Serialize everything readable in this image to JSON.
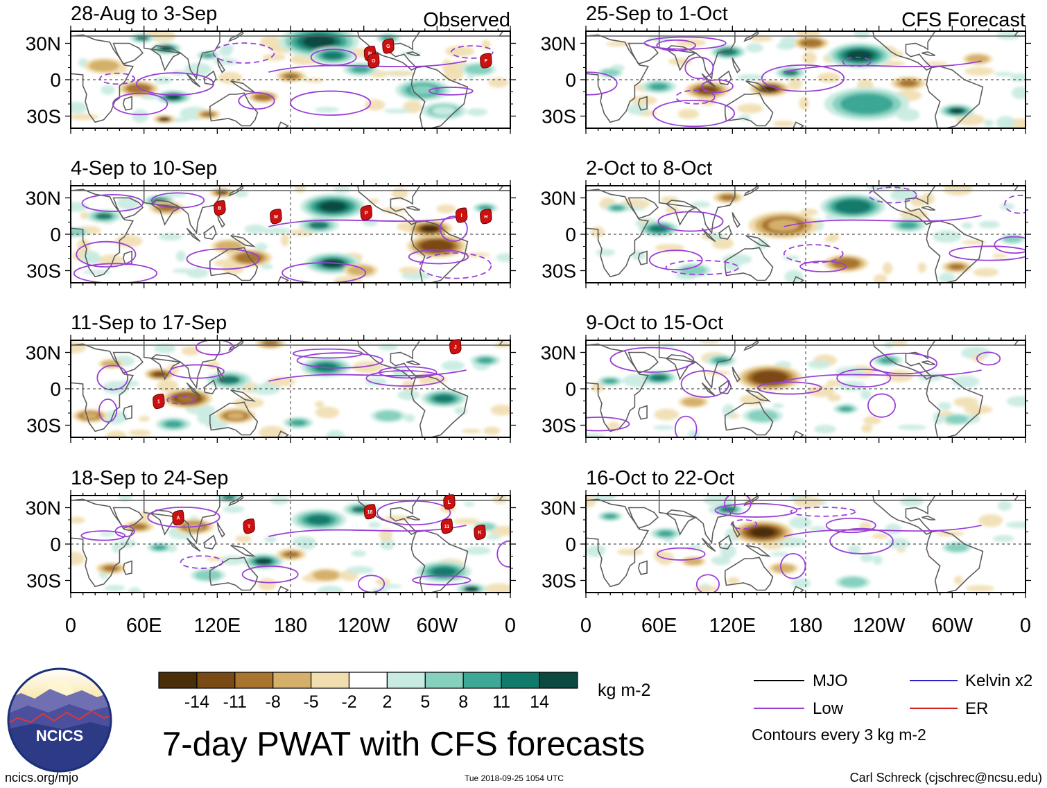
{
  "colors": {
    "scale": [
      "#4a2e0a",
      "#7a4a14",
      "#a8742e",
      "#d4b06a",
      "#f1deb0",
      "#ffffff",
      "#c8ebe1",
      "#86d0c0",
      "#3ea796",
      "#127a6b",
      "#0b4a40"
    ],
    "low_contour": "#9a3fd6",
    "mjo": "#000000",
    "kelvin": "#2525c8",
    "er": "#d81e1e",
    "land": "#5c5c5c",
    "storm": "#cc1111",
    "logo_ring": "#1b2f78"
  },
  "chart_data": {
    "type": "heatmap",
    "title": "7-day PWAT with CFS forecasts",
    "x_ticks": [
      "0",
      "60E",
      "120E",
      "180",
      "120W",
      "60W",
      "0"
    ],
    "y_ticks": [
      "30N",
      "0",
      "30S"
    ],
    "colorbar": {
      "labels": [
        "-14",
        "-11",
        "-8",
        "-5",
        "-2",
        "2",
        "5",
        "8",
        "11",
        "14"
      ],
      "units": "kg m-2"
    },
    "columns": [
      {
        "name": "Observed",
        "panels": [
          {
            "label": "28-Aug to 3-Sep",
            "storms": [
              {
                "id": "N",
                "lon": -115,
                "lat": 22
              },
              {
                "id": "O",
                "lon": -112,
                "lat": 16
              },
              {
                "id": "G",
                "lon": -100,
                "lat": 28
              },
              {
                "id": "F",
                "lon": -20,
                "lat": 16
              }
            ]
          },
          {
            "label": "4-Sep to 10-Sep",
            "storms": [
              {
                "id": "B",
                "lon": 122,
                "lat": 22
              },
              {
                "id": "M",
                "lon": 168,
                "lat": 15
              },
              {
                "id": "P",
                "lon": -118,
                "lat": 18
              },
              {
                "id": "I",
                "lon": -40,
                "lat": 16
              },
              {
                "id": "H",
                "lon": -20,
                "lat": 15
              }
            ]
          },
          {
            "label": "11-Sep to 17-Sep",
            "storms": [
              {
                "id": "J",
                "lon": -45,
                "lat": 35
              },
              {
                "id": "1",
                "lon": 72,
                "lat": -10
              }
            ]
          },
          {
            "label": "18-Sep to 24-Sep",
            "storms": [
              {
                "id": "A",
                "lon": 88,
                "lat": 22
              },
              {
                "id": "T",
                "lon": 146,
                "lat": 15
              },
              {
                "id": "18",
                "lon": -115,
                "lat": 27
              },
              {
                "id": "L",
                "lon": -50,
                "lat": 35
              },
              {
                "id": "11",
                "lon": -52,
                "lat": 15
              },
              {
                "id": "K",
                "lon": -25,
                "lat": 10
              }
            ]
          }
        ]
      },
      {
        "name": "CFS Forecast",
        "panels": [
          {
            "label": "25-Sep to 1-Oct",
            "storms": []
          },
          {
            "label": "2-Oct to 8-Oct",
            "storms": []
          },
          {
            "label": "9-Oct to 15-Oct",
            "storms": []
          },
          {
            "label": "16-Oct to 22-Oct",
            "storms": []
          }
        ]
      }
    ]
  },
  "legend": {
    "items": [
      {
        "label": "MJO",
        "color_key": "mjo"
      },
      {
        "label": "Kelvin x2",
        "color_key": "kelvin"
      },
      {
        "label": "Low",
        "color_key": "low_contour"
      },
      {
        "label": "ER",
        "color_key": "er"
      }
    ],
    "contour_note": "Contours every 3 kg m-2"
  },
  "footer": {
    "url": "ncics.org/mjo",
    "timestamp": "Tue 2018-09-25 1054 UTC",
    "credit": "Carl Schreck (cjschrec@ncsu.edu)"
  },
  "logo": {
    "text": "NCICS"
  }
}
